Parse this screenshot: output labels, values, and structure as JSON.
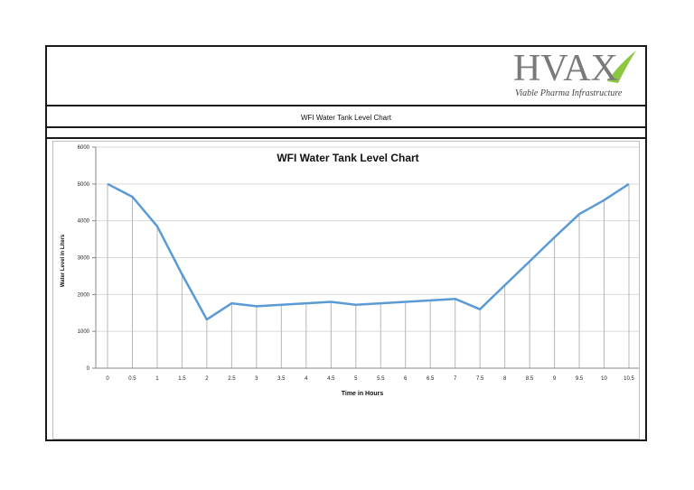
{
  "header": {
    "logo_text": "HVAX",
    "logo_tagline": "Viable Pharma Infrastructure",
    "subtitle": "WFI Water Tank Level Chart"
  },
  "colors": {
    "line": "#5b9bd5",
    "accent_green": "#8dc63f",
    "logo_gray": "#7a7a7a"
  },
  "chart_data": {
    "type": "line",
    "title": "WFI Water Tank Level Chart",
    "xlabel": "Time  in Hours",
    "ylabel": "Water Level in Liters",
    "x": [
      0,
      0.5,
      1,
      1.5,
      2,
      2.5,
      3,
      3.5,
      4,
      4.5,
      5,
      5.5,
      6,
      6.5,
      7,
      7.5,
      8,
      8.5,
      9,
      9.5,
      10,
      10.5
    ],
    "x_tick_labels": [
      "0",
      "0.5",
      "1",
      "1.5",
      "2",
      "2.5",
      "3",
      "3.5",
      "4",
      "4.5",
      "5",
      "5.5",
      "6",
      "6.5",
      "7",
      "7.5",
      "8",
      "8.5",
      "9",
      "9.5",
      "10",
      "10.5"
    ],
    "series": [
      {
        "values": [
          5000,
          4650,
          3850,
          2550,
          1320,
          1760,
          1680,
          1720,
          1760,
          1800,
          1720,
          1760,
          1800,
          1840,
          1880,
          1600,
          2250,
          2900,
          3550,
          4180,
          4560,
          5000
        ]
      }
    ],
    "ylim": [
      0,
      6000
    ],
    "y_ticks": [
      0,
      1000,
      2000,
      3000,
      4000,
      5000,
      6000
    ],
    "grid": true,
    "legend": "none"
  }
}
